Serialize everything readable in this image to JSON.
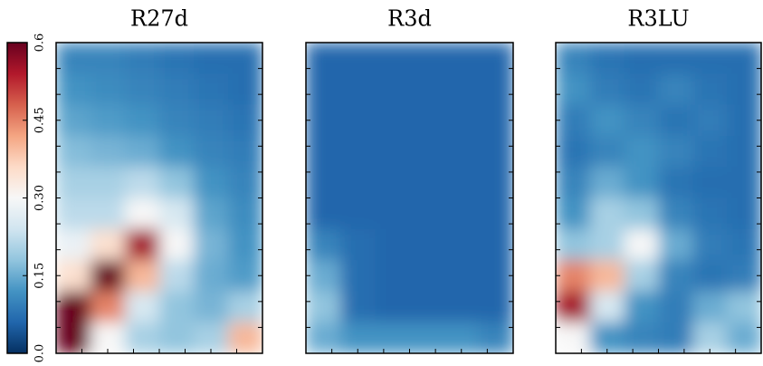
{
  "chart_data": [
    {
      "type": "heatmap",
      "title": "R27d",
      "values": [
        [
          0.1,
          0.1,
          0.09,
          0.08,
          0.07,
          0.07
        ],
        [
          0.12,
          0.11,
          0.1,
          0.09,
          0.08,
          0.07
        ],
        [
          0.14,
          0.13,
          0.12,
          0.1,
          0.09,
          0.08
        ],
        [
          0.17,
          0.16,
          0.15,
          0.12,
          0.1,
          0.09
        ],
        [
          0.2,
          0.2,
          0.22,
          0.18,
          0.12,
          0.1
        ],
        [
          0.22,
          0.22,
          0.3,
          0.25,
          0.14,
          0.11
        ],
        [
          0.28,
          0.35,
          0.55,
          0.3,
          0.16,
          0.12
        ],
        [
          0.35,
          0.6,
          0.4,
          0.22,
          0.15,
          0.13
        ],
        [
          0.6,
          0.45,
          0.25,
          0.18,
          0.16,
          0.2
        ],
        [
          0.6,
          0.3,
          0.2,
          0.18,
          0.2,
          0.4
        ]
      ]
    },
    {
      "type": "heatmap",
      "title": "R3d",
      "values": [
        [
          0.06,
          0.06,
          0.06,
          0.06,
          0.06,
          0.06
        ],
        [
          0.06,
          0.06,
          0.06,
          0.06,
          0.06,
          0.06
        ],
        [
          0.06,
          0.06,
          0.06,
          0.06,
          0.06,
          0.06
        ],
        [
          0.06,
          0.06,
          0.06,
          0.06,
          0.06,
          0.06
        ],
        [
          0.06,
          0.06,
          0.06,
          0.06,
          0.06,
          0.06
        ],
        [
          0.06,
          0.06,
          0.06,
          0.06,
          0.06,
          0.06
        ],
        [
          0.1,
          0.07,
          0.06,
          0.06,
          0.06,
          0.06
        ],
        [
          0.15,
          0.07,
          0.06,
          0.06,
          0.06,
          0.06
        ],
        [
          0.18,
          0.07,
          0.06,
          0.06,
          0.06,
          0.06
        ],
        [
          0.15,
          0.12,
          0.12,
          0.12,
          0.12,
          0.1
        ]
      ]
    },
    {
      "type": "heatmap",
      "title": "R3LU",
      "values": [
        [
          0.1,
          0.08,
          0.07,
          0.07,
          0.07,
          0.07
        ],
        [
          0.12,
          0.09,
          0.08,
          0.1,
          0.08,
          0.07
        ],
        [
          0.09,
          0.12,
          0.1,
          0.08,
          0.09,
          0.07
        ],
        [
          0.08,
          0.1,
          0.12,
          0.1,
          0.08,
          0.07
        ],
        [
          0.1,
          0.15,
          0.12,
          0.08,
          0.07,
          0.07
        ],
        [
          0.12,
          0.2,
          0.18,
          0.1,
          0.08,
          0.07
        ],
        [
          0.18,
          0.2,
          0.3,
          0.15,
          0.09,
          0.08
        ],
        [
          0.45,
          0.4,
          0.2,
          0.1,
          0.08,
          0.09
        ],
        [
          0.55,
          0.25,
          0.12,
          0.09,
          0.15,
          0.18
        ],
        [
          0.3,
          0.12,
          0.1,
          0.09,
          0.2,
          0.15
        ]
      ]
    }
  ],
  "colorbar": {
    "colormap": "RdBu_r",
    "clim": [
      0,
      0.6
    ],
    "ticks": [
      {
        "value": 0,
        "label": "0.0"
      },
      0.15,
      {
        "value": 0.3,
        "label": "0.30"
      },
      0.45,
      0.6
    ]
  }
}
